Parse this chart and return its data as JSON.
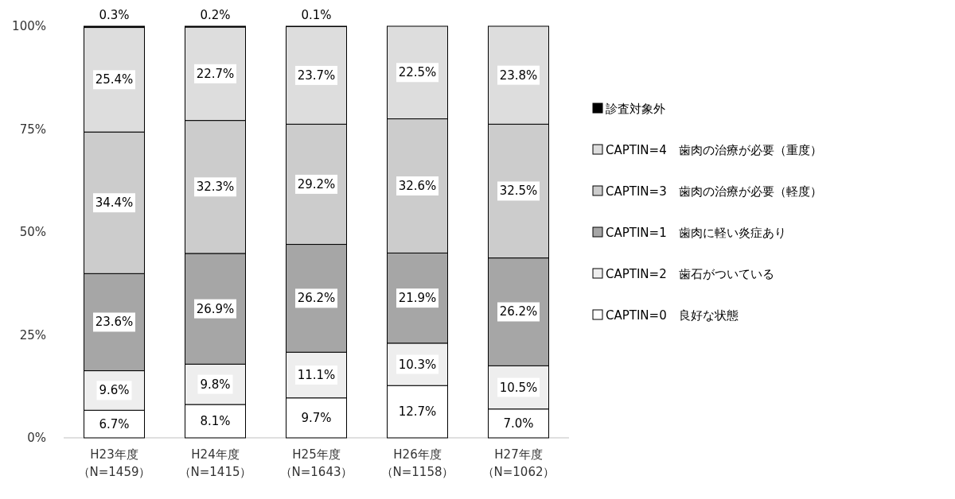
{
  "chart_data": {
    "type": "bar",
    "stacked": true,
    "categories": [
      "H23年度（N=1459）",
      "H24年度（N=1415）",
      "H25年度（N=1643）",
      "H26年度（N=1158）",
      "H27年度（N=1062）"
    ],
    "series": [
      {
        "name": "CAPTIN=0　良好な状態",
        "color": "#ffffff",
        "values": [
          6.7,
          8.1,
          9.7,
          12.7,
          7.0
        ],
        "value_labels": [
          "6.7%",
          "8.1%",
          "9.7%",
          "12.7%",
          "7.0%"
        ]
      },
      {
        "name": "CAPTIN=2　歯石がついている",
        "color": "#eeeeee",
        "values": [
          9.6,
          9.8,
          11.1,
          10.3,
          10.5
        ],
        "value_labels": [
          "9.6%",
          "9.8%",
          "11.1%",
          "10.3%",
          "10.5%"
        ]
      },
      {
        "name": "CAPTIN=1　歯肉に軽い炎症あり",
        "color": "#a6a6a6",
        "values": [
          23.6,
          26.9,
          26.2,
          21.9,
          26.2
        ],
        "value_labels": [
          "23.6%",
          "26.9%",
          "26.2%",
          "21.9%",
          "26.2%"
        ]
      },
      {
        "name": "CAPTIN=3　歯肉の治療が必要（軽度）",
        "color": "#cccccc",
        "values": [
          34.4,
          32.3,
          29.2,
          32.6,
          32.5
        ],
        "value_labels": [
          "34.4%",
          "32.3%",
          "29.2%",
          "32.6%",
          "32.5%"
        ]
      },
      {
        "name": "CAPTIN=4　歯肉の治療が必要（重度）",
        "color": "#dddddd",
        "values": [
          25.4,
          22.7,
          23.7,
          22.5,
          23.8
        ],
        "value_labels": [
          "25.4%",
          "22.7%",
          "23.7%",
          "22.5%",
          "23.8%"
        ]
      },
      {
        "name": "診査対象外",
        "color": "#000000",
        "values": [
          0.3,
          0.2,
          0.1,
          0,
          0
        ],
        "value_labels": [
          "0.3%",
          "0.2%",
          "0.1%",
          null,
          null
        ]
      }
    ],
    "ylim": [
      0,
      100
    ],
    "yticks": [
      {
        "value": 0,
        "label": "0%"
      },
      {
        "value": 25,
        "label": "25%"
      },
      {
        "value": 50,
        "label": "50%"
      },
      {
        "value": 75,
        "label": "75%"
      },
      {
        "value": 100,
        "label": "100%"
      }
    ],
    "legend": "right"
  }
}
